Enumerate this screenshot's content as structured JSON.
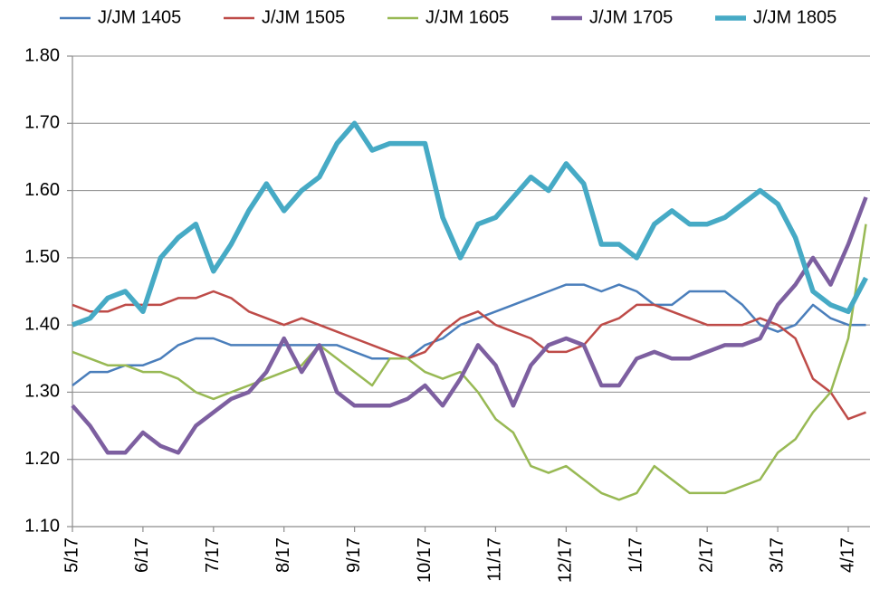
{
  "chart_data": {
    "type": "line",
    "categories": [
      "5/17",
      null,
      null,
      null,
      "6/17",
      null,
      null,
      null,
      "7/17",
      null,
      null,
      null,
      "8/17",
      null,
      null,
      null,
      "9/17",
      null,
      null,
      null,
      "10/17",
      null,
      null,
      null,
      "11/17",
      null,
      null,
      null,
      "12/17",
      null,
      null,
      null,
      "1/17",
      null,
      null,
      null,
      "2/17",
      null,
      null,
      null,
      "3/17",
      null,
      null,
      null,
      "4/17",
      null
    ],
    "series": [
      {
        "name": "J/JM 1405",
        "color": "#4a7ebb",
        "values": [
          1.31,
          1.33,
          1.33,
          1.34,
          1.34,
          1.35,
          1.37,
          1.38,
          1.38,
          1.37,
          1.37,
          1.37,
          1.37,
          1.37,
          1.37,
          1.37,
          1.36,
          1.35,
          1.35,
          1.35,
          1.37,
          1.38,
          1.4,
          1.41,
          1.42,
          1.43,
          1.44,
          1.45,
          1.46,
          1.46,
          1.45,
          1.46,
          1.45,
          1.43,
          1.43,
          1.45,
          1.45,
          1.45,
          1.43,
          1.4,
          1.39,
          1.4,
          1.43,
          1.41,
          1.4,
          1.4
        ]
      },
      {
        "name": "J/JM 1505",
        "color": "#be4b48",
        "values": [
          1.43,
          1.42,
          1.42,
          1.43,
          1.43,
          1.43,
          1.44,
          1.44,
          1.45,
          1.44,
          1.42,
          1.41,
          1.4,
          1.41,
          1.4,
          1.39,
          1.38,
          1.37,
          1.36,
          1.35,
          1.36,
          1.39,
          1.41,
          1.42,
          1.4,
          1.39,
          1.38,
          1.36,
          1.36,
          1.37,
          1.4,
          1.41,
          1.43,
          1.43,
          1.42,
          1.41,
          1.4,
          1.4,
          1.4,
          1.41,
          1.4,
          1.38,
          1.32,
          1.3,
          1.26,
          1.27
        ]
      },
      {
        "name": "J/JM 1605",
        "color": "#98b954",
        "values": [
          1.36,
          1.35,
          1.34,
          1.34,
          1.33,
          1.33,
          1.32,
          1.3,
          1.29,
          1.3,
          1.31,
          1.32,
          1.33,
          1.34,
          1.37,
          1.35,
          1.33,
          1.31,
          1.35,
          1.35,
          1.33,
          1.32,
          1.33,
          1.3,
          1.26,
          1.24,
          1.19,
          1.18,
          1.19,
          1.17,
          1.15,
          1.14,
          1.15,
          1.19,
          1.17,
          1.15,
          1.15,
          1.15,
          1.16,
          1.17,
          1.21,
          1.23,
          1.27,
          1.3,
          1.38,
          1.55
        ]
      },
      {
        "name": "J/JM 1705",
        "color": "#7d5fa0",
        "values": [
          1.28,
          1.25,
          1.21,
          1.21,
          1.24,
          1.22,
          1.21,
          1.25,
          1.27,
          1.29,
          1.3,
          1.33,
          1.38,
          1.33,
          1.37,
          1.3,
          1.28,
          1.28,
          1.28,
          1.29,
          1.31,
          1.28,
          1.32,
          1.37,
          1.34,
          1.28,
          1.34,
          1.37,
          1.38,
          1.37,
          1.31,
          1.31,
          1.35,
          1.36,
          1.35,
          1.35,
          1.36,
          1.37,
          1.37,
          1.38,
          1.43,
          1.46,
          1.5,
          1.46,
          1.52,
          1.59
        ]
      },
      {
        "name": "J/JM 1805",
        "color": "#46aac5",
        "values": [
          1.4,
          1.41,
          1.44,
          1.45,
          1.42,
          1.5,
          1.53,
          1.55,
          1.48,
          1.52,
          1.57,
          1.61,
          1.57,
          1.6,
          1.62,
          1.67,
          1.7,
          1.66,
          1.67,
          1.67,
          1.67,
          1.56,
          1.5,
          1.55,
          1.56,
          1.59,
          1.62,
          1.6,
          1.64,
          1.61,
          1.52,
          1.52,
          1.5,
          1.55,
          1.57,
          1.55,
          1.55,
          1.56,
          1.58,
          1.6,
          1.58,
          1.53,
          1.45,
          1.43,
          1.42,
          1.47
        ]
      }
    ],
    "ylim": [
      1.1,
      1.8
    ],
    "yticks": [
      {
        "value": 1.1,
        "label": "1.10"
      },
      {
        "value": 1.2,
        "label": "1.20"
      },
      {
        "value": 1.3,
        "label": "1.30"
      },
      {
        "value": 1.4,
        "label": "1.40"
      },
      {
        "value": 1.5,
        "label": "1.50"
      },
      {
        "value": 1.6,
        "label": "1.60"
      },
      {
        "value": 1.7,
        "label": "1.70"
      },
      {
        "value": 1.8,
        "label": "1.80"
      }
    ],
    "grid": true,
    "legend": "top"
  }
}
